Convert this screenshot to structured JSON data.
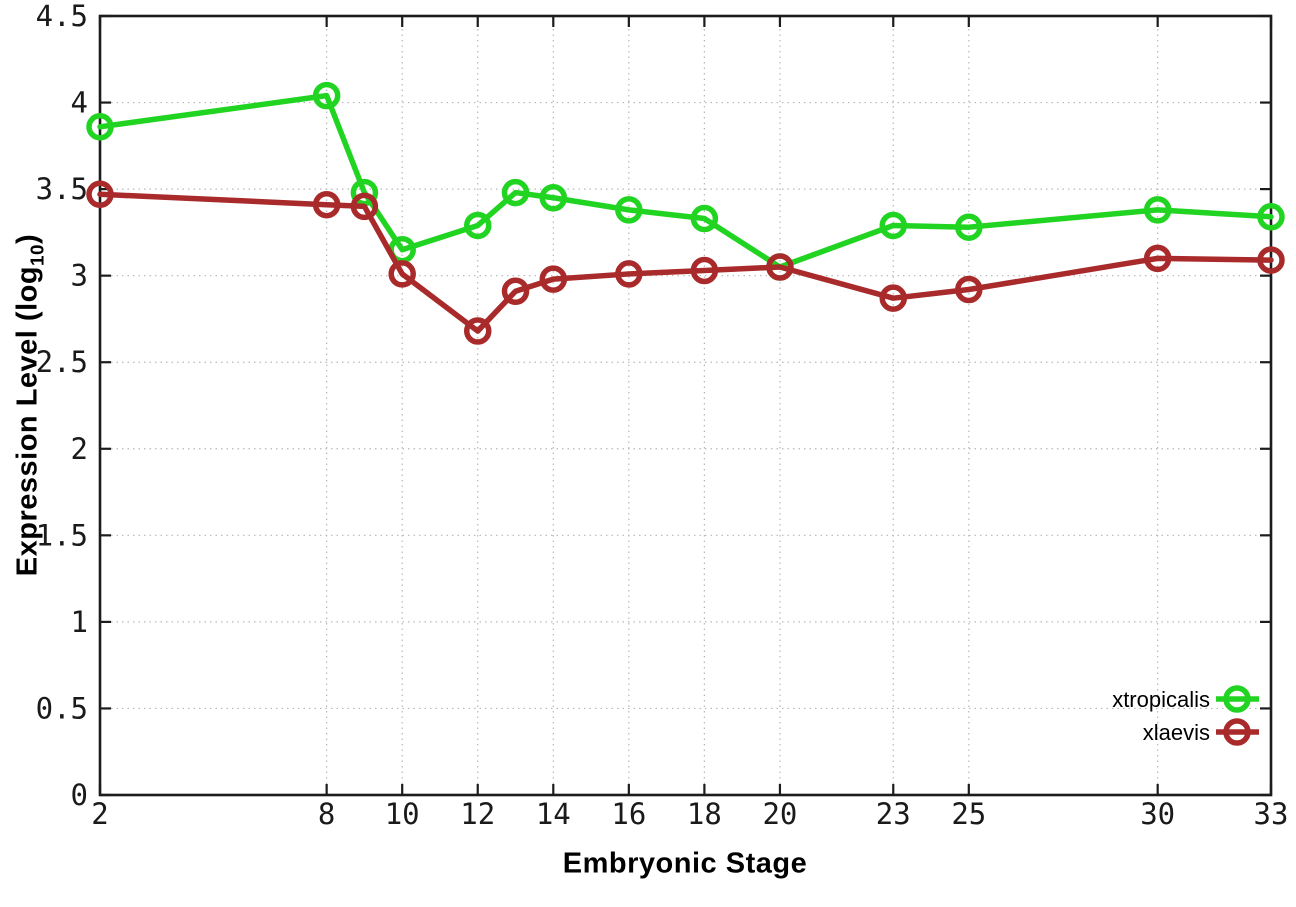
{
  "labels": {
    "xlabel": "Embryonic Stage",
    "ylabel_prefix": "Expression Level (log",
    "ylabel_sub": "10",
    "ylabel_suffix": ")"
  },
  "chart_data": {
    "type": "line",
    "title": "",
    "xlabel": "Embryonic Stage",
    "ylabel": "Expression Level (log10)",
    "x": [
      2,
      8,
      9,
      10,
      12,
      13,
      14,
      16,
      18,
      20,
      23,
      25,
      30,
      33
    ],
    "series": [
      {
        "name": "xtropicalis",
        "color": "#21d421",
        "values": [
          3.86,
          4.04,
          3.48,
          3.15,
          3.29,
          3.48,
          3.45,
          3.38,
          3.33,
          3.05,
          3.29,
          3.28,
          3.38,
          3.34
        ]
      },
      {
        "name": "xlaevis",
        "color": "#a92a2a",
        "values": [
          3.47,
          3.41,
          3.4,
          3.01,
          2.68,
          2.91,
          2.98,
          3.01,
          3.03,
          3.05,
          2.87,
          2.92,
          3.1,
          3.09
        ]
      }
    ],
    "xticks": [
      2,
      8,
      10,
      12,
      14,
      16,
      18,
      20,
      23,
      25,
      30,
      33
    ],
    "yticks": [
      0,
      0.5,
      1,
      1.5,
      2,
      2.5,
      3,
      3.5,
      4,
      4.5
    ],
    "xlim": [
      2,
      33
    ],
    "ylim": [
      0,
      4.5
    ],
    "grid": true,
    "legend_position": "inside-bottom-right",
    "marker": "open-circle"
  },
  "style": {
    "background": "#ffffff",
    "grid_color": "#b8b8b8",
    "border_color": "#1c1c1c",
    "tick_label_color": "#1a1a1a",
    "line_width": 5.5,
    "marker_radius": 11
  }
}
